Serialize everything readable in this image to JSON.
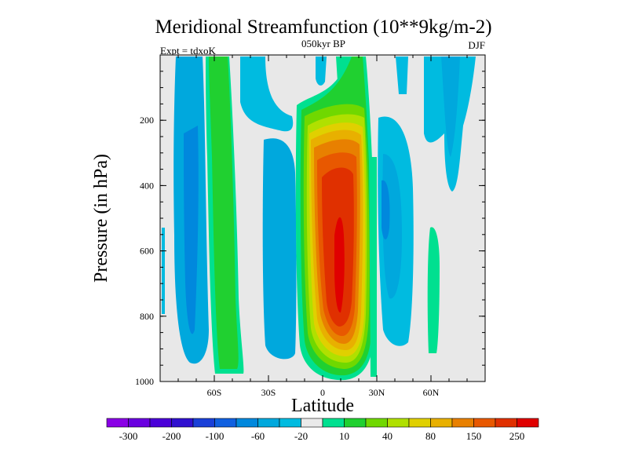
{
  "chart_data": {
    "type": "heatmap",
    "title": "Meridional Streamfunction (10**9kg/m-2)",
    "subtitle_center": "050kyr BP",
    "subtitle_left": "Expt = tdxoK",
    "subtitle_right": "DJF",
    "xlabel": "Latitude",
    "ylabel": "Pressure (in hPa)",
    "xlim": [
      -90,
      90
    ],
    "ylim": [
      1000,
      0
    ],
    "xticks": [
      {
        "value": -60,
        "label": "60S"
      },
      {
        "value": -30,
        "label": "30S"
      },
      {
        "value": 0,
        "label": "0"
      },
      {
        "value": 30,
        "label": "30N"
      },
      {
        "value": 60,
        "label": "60N"
      }
    ],
    "yticks": [
      {
        "value": 200,
        "label": "200"
      },
      {
        "value": 400,
        "label": "400"
      },
      {
        "value": 600,
        "label": "600"
      },
      {
        "value": 800,
        "label": "800"
      },
      {
        "value": 1000,
        "label": "1000"
      }
    ],
    "colorbar": {
      "colors": [
        "#8a00e6",
        "#6a00e0",
        "#4a00d8",
        "#3010d0",
        "#1a40d8",
        "#1060e0",
        "#0088dd",
        "#00a8dd",
        "#00bbe0",
        "#eaeaea",
        "#00e090",
        "#20d030",
        "#70d800",
        "#b0e000",
        "#e0d000",
        "#e8b000",
        "#e88000",
        "#e85800",
        "#e03000",
        "#e00000"
      ],
      "labels": [
        "-300",
        "-200",
        "-100",
        "-60",
        "-20",
        "10",
        "40",
        "80",
        "150",
        "250"
      ]
    },
    "cells": [
      {
        "lat_range": [
          -90,
          -85
        ],
        "p_range": [
          0,
          1000
        ],
        "value": 0
      },
      {
        "lat_range": [
          -85,
          -75
        ],
        "p_range": [
          10,
          900
        ],
        "value": -20
      },
      {
        "lat_range": [
          -75,
          -62
        ],
        "p_range": [
          10,
          930
        ],
        "value": 20
      },
      {
        "lat_range": [
          -62,
          -44
        ],
        "p_range": [
          10,
          950
        ],
        "value": 40
      },
      {
        "lat_range": [
          -44,
          -24
        ],
        "p_range": [
          250,
          930
        ],
        "value": -20
      },
      {
        "lat_range": [
          -24,
          -6
        ],
        "p_range": [
          190,
          950
        ],
        "value": 40
      },
      {
        "lat_range": [
          -6,
          20
        ],
        "p_range": [
          100,
          980
        ],
        "value": 150
      },
      {
        "lat_range": [
          20,
          30
        ],
        "p_range": [
          200,
          950
        ],
        "value": 20
      },
      {
        "lat_range": [
          30,
          48
        ],
        "p_range": [
          200,
          850
        ],
        "value": -20
      },
      {
        "lat_range": [
          60,
          65
        ],
        "p_range": [
          450,
          930
        ],
        "value": 10
      },
      {
        "lat_range": [
          66,
          82
        ],
        "p_range": [
          10,
          450
        ],
        "value": -20
      }
    ]
  }
}
